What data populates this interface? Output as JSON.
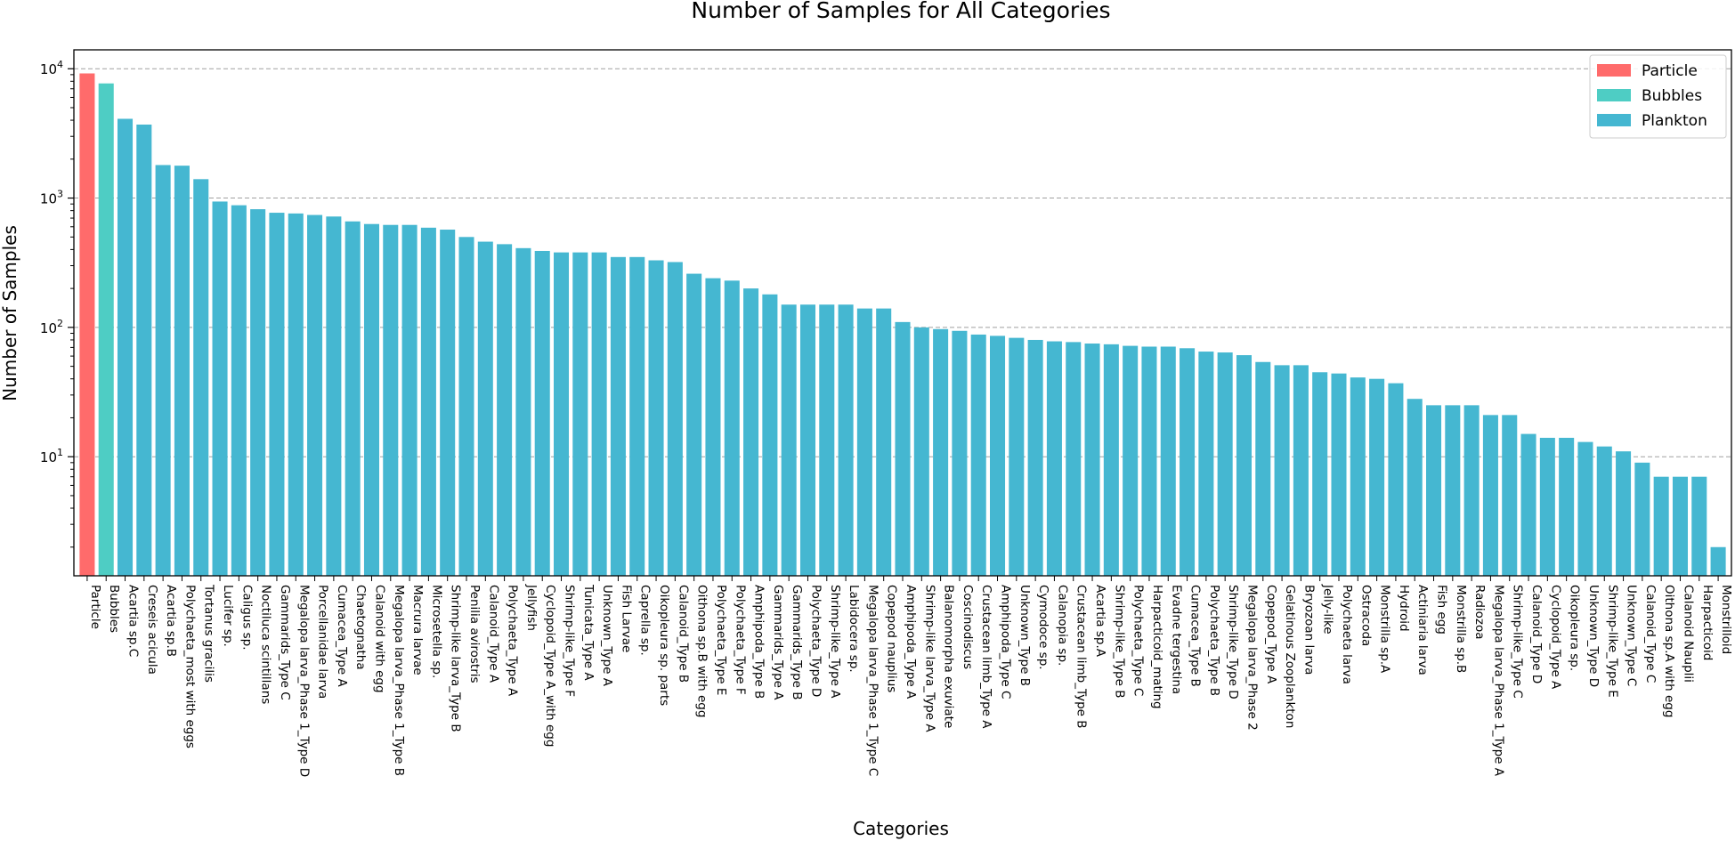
{
  "chart_data": {
    "type": "bar",
    "title": "Number of Samples for All Categories",
    "xlabel": "Categories",
    "ylabel": "Number of Samples",
    "yscale": "log",
    "ylim": [
      1.2,
      14000
    ],
    "yticks": [
      {
        "value": 10,
        "base": "10",
        "exp": "1"
      },
      {
        "value": 100,
        "base": "10",
        "exp": "2"
      },
      {
        "value": 1000,
        "base": "10",
        "exp": "3"
      },
      {
        "value": 10000,
        "base": "10",
        "exp": "4"
      }
    ],
    "grid": "y-dashed",
    "legend_position": "top-right",
    "legend": [
      {
        "name": "Particle",
        "color": "#ff6b6b"
      },
      {
        "name": "Bubbles",
        "color": "#4ecdc4"
      },
      {
        "name": "Plankton",
        "color": "#45b7d1"
      }
    ],
    "categories": [
      "Particle",
      "Bubbles",
      "Acartia sp.C",
      "Creseis acicula",
      "Acartia sp.B",
      "Polychaeta_most with eggs",
      "Tortanus gracilis",
      "Lucifer sp.",
      "Caligus sp.",
      "Noctiluca scintillans",
      "Gammarids_Type C",
      "Megalopa larva_Phase 1_Type D",
      "Porcellanidae larva",
      "Cumacea_Type A",
      "Chaetognatha",
      "Calanoid with egg",
      "Megalopa larva_Phase 1_Type B",
      "Macrura larvae",
      "Microsetella sp.",
      "Shrimp-like larva_Type B",
      "Penilia avirostris",
      "Calanoid_Type A",
      "Polychaeta_Type A",
      "Jellyfish",
      "Cyclopoid_Type A_with egg",
      "Shrimp-like_Type F",
      "Tunicata_Type A",
      "Unknown_Type A",
      "Fish Larvae",
      "Caprella sp.",
      "Oikopleura sp. parts",
      "Calanoid_Type B",
      "Oithona sp.B with egg",
      "Polychaeta_Type E",
      "Polychaeta_Type F",
      "Amphipoda_Type B",
      "Gammarids_Type A",
      "Gammarids_Type B",
      "Polychaeta_Type D",
      "Shrimp-like_Type A",
      "Labidocera sp.",
      "Megalopa larva_Phase 1_Type C",
      "Copepod nauplius",
      "Amphipoda_Type A",
      "Shrimp-like larva_Type A",
      "Balanomorpha exuviate",
      "Coscinodiscus",
      "Crustacean limb_Type A",
      "Amphipoda_Type C",
      "Unknown_Type B",
      "Cymodoce sp.",
      "Calanopia sp.",
      "Crustacean limb_Type B",
      "Acartia sp.A",
      "Shrimp-like_Type B",
      "Polychaeta_Type C",
      "Harpacticoid_mating",
      "Evadne tergestina",
      "Cumacea_Type B",
      "Polychaeta_Type B",
      "Shrimp-like_Type D",
      "Megalopa larva_Phase 2",
      "Copepod_Type A",
      "Gelatinous Zooplankton",
      "Bryozoan larva",
      "Jelly-like",
      "Polychaeta larva",
      "Ostracoda",
      "Monstrilla sp.A",
      "Hydroid",
      "Actiniaria larva",
      "Fish egg",
      "Monstrilla sp.B",
      "Radiozoa",
      "Megalopa larva_Phase 1_Type A",
      "Shrimp-like_Type C",
      "Calanoid_Type D",
      "Cyclopoid_Type A",
      "Oikopleura sp.",
      "Unknown_Type D",
      "Shrimp-like_Type E",
      "Unknown_Type C",
      "Calanoid_Type C",
      "Oithona sp.A with egg",
      "Calanoid Nauplii",
      "Harpacticoid",
      "Monstrilloid"
    ],
    "series": [
      {
        "name": "Particle",
        "color": "#ff6b6b",
        "indices": [
          0
        ]
      },
      {
        "name": "Bubbles",
        "color": "#4ecdc4",
        "indices": [
          1
        ]
      },
      {
        "name": "Plankton",
        "color": "#45b7d1",
        "indices_from": 2
      }
    ],
    "values": [
      9200,
      7700,
      4100,
      3700,
      1800,
      1780,
      1400,
      940,
      880,
      820,
      770,
      760,
      740,
      720,
      660,
      630,
      620,
      620,
      590,
      570,
      500,
      460,
      440,
      410,
      390,
      380,
      380,
      380,
      350,
      350,
      330,
      320,
      260,
      240,
      230,
      200,
      180,
      150,
      150,
      150,
      150,
      140,
      140,
      110,
      100,
      97,
      94,
      88,
      86,
      83,
      80,
      78,
      77,
      75,
      74,
      72,
      71,
      71,
      69,
      65,
      64,
      61,
      54,
      51,
      51,
      45,
      44,
      41,
      40,
      37,
      28,
      25,
      25,
      25,
      21,
      21,
      15,
      14,
      14,
      13,
      12,
      11,
      9,
      7,
      7,
      7,
      2
    ]
  }
}
